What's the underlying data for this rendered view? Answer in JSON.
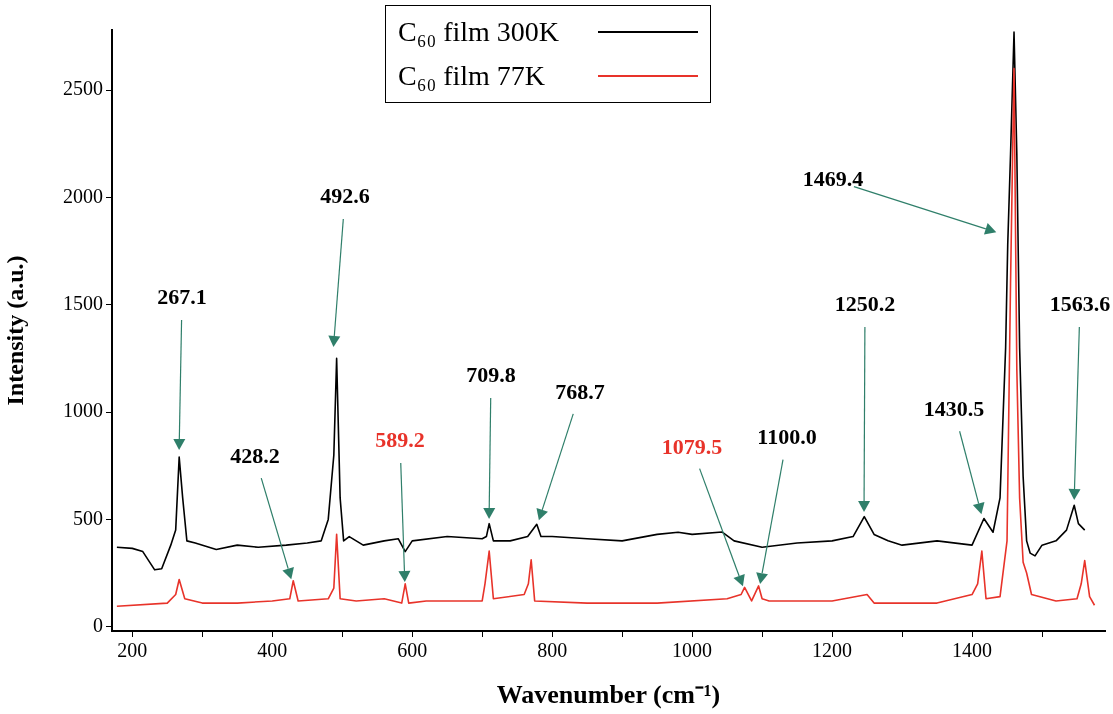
{
  "chart_data": {
    "type": "line",
    "xlabel": "Wavenumber (cm⁻¹)",
    "ylabel": "Intensity (a.u.)",
    "xlim": [
      171,
      1590
    ],
    "ylim": [
      -20,
      2780
    ],
    "xticks": [
      200,
      {
        "value": 300,
        "label": null
      },
      400,
      {
        "value": 500,
        "label": null
      },
      600,
      {
        "value": 700,
        "label": null
      },
      800,
      {
        "value": 900,
        "label": null
      },
      1000,
      {
        "value": 1100,
        "label": null
      },
      1200,
      {
        "value": 1300,
        "label": null
      },
      1400,
      {
        "value": 1500,
        "label": null
      }
    ],
    "yticks": [
      0,
      500,
      1000,
      1500,
      2000,
      2500
    ],
    "legend": "top",
    "series": [
      {
        "name": "C₆₀ film 300K",
        "color": "#000000",
        "x": [
          178,
          200,
          215,
          225,
          232,
          242,
          255,
          262,
          267,
          272,
          278,
          290,
          320,
          350,
          380,
          420,
          450,
          470,
          480,
          488,
          492,
          497,
          502,
          510,
          530,
          560,
          580,
          590,
          600,
          650,
          700,
          706,
          710,
          716,
          740,
          765,
          778,
          784,
          800,
          850,
          900,
          950,
          980,
          1000,
          1043,
          1060,
          1100,
          1150,
          1200,
          1230,
          1246,
          1260,
          1280,
          1300,
          1350,
          1400,
          1417,
          1430,
          1440,
          1448,
          1451,
          1455,
          1460,
          1464,
          1468,
          1473,
          1478,
          1483,
          1490,
          1500,
          1520,
          1535,
          1546,
          1552,
          1561
        ],
        "values": [
          370,
          365,
          350,
          300,
          265,
          270,
          380,
          450,
          790,
          600,
          400,
          390,
          360,
          380,
          370,
          380,
          390,
          400,
          500,
          800,
          1250,
          600,
          400,
          420,
          380,
          400,
          410,
          350,
          400,
          420,
          410,
          420,
          480,
          400,
          400,
          420,
          477,
          420,
          420,
          410,
          400,
          430,
          440,
          430,
          441,
          400,
          370,
          390,
          400,
          420,
          513,
          430,
          400,
          380,
          400,
          380,
          504,
          440,
          600,
          1300,
          1780,
          2200,
          2770,
          2200,
          1300,
          700,
          400,
          343,
          330,
          380,
          400,
          450,
          566,
          480,
          450
        ]
      },
      {
        "name": "C₆₀ film 77K",
        "color": "#e8332a",
        "x": [
          178,
          250,
          262,
          267,
          275,
          300,
          350,
          400,
          425,
          430,
          437,
          480,
          488,
          492,
          497,
          520,
          560,
          585,
          590,
          595,
          620,
          700,
          704,
          710,
          716,
          760,
          766,
          770,
          775,
          850,
          950,
          1050,
          1070,
          1075,
          1085,
          1095,
          1100,
          1110,
          1200,
          1250,
          1260,
          1350,
          1400,
          1408,
          1414,
          1420,
          1440,
          1450,
          1455,
          1460,
          1464,
          1468,
          1473,
          1478,
          1485,
          1520,
          1550,
          1556,
          1561,
          1568,
          1575
        ],
        "values": [
          95,
          110,
          150,
          220,
          130,
          110,
          110,
          120,
          130,
          214,
          120,
          130,
          180,
          430,
          130,
          120,
          130,
          110,
          200,
          110,
          120,
          120,
          200,
          352,
          130,
          150,
          200,
          312,
          120,
          110,
          110,
          130,
          150,
          183,
          120,
          190,
          130,
          120,
          120,
          150,
          110,
          110,
          150,
          200,
          352,
          130,
          140,
          400,
          1600,
          2600,
          1200,
          600,
          300,
          250,
          150,
          120,
          130,
          200,
          308,
          140,
          100
        ]
      }
    ],
    "annotations": [
      "267.1",
      "492.6",
      "428.2",
      "589.2",
      "709.8",
      "768.7",
      "1079.5",
      "1100.0",
      "1250.2",
      "1430.5",
      "1469.4",
      "1563.6"
    ]
  }
}
